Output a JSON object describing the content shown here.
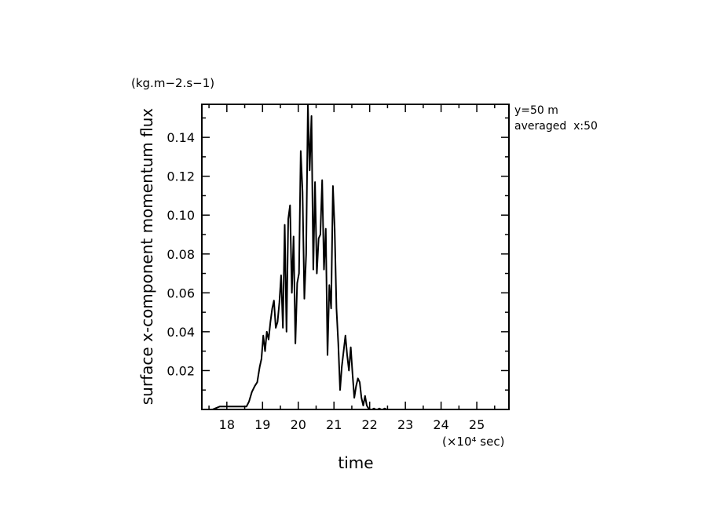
{
  "chart_data": {
    "type": "line",
    "title": "",
    "xlabel": "time",
    "ylabel": "surface x-component momentum flux",
    "x_unit": "(×10⁴ sec)",
    "y_unit": "(kg.m−2.s−1)",
    "annotations": [
      "y=50 m",
      "averaged  x:50"
    ],
    "xlim": [
      17.3,
      25.9
    ],
    "ylim": [
      0,
      0.157
    ],
    "x_ticks": [
      18,
      19,
      20,
      21,
      22,
      23,
      24,
      25
    ],
    "x_tick_labels": [
      "18",
      "19",
      "20",
      "21",
      "22",
      "23",
      "24",
      "25"
    ],
    "y_ticks": [
      0.02,
      0.04,
      0.06,
      0.08,
      0.1,
      0.12,
      0.14
    ],
    "y_tick_labels": [
      "0.02",
      "0.04",
      "0.06",
      "0.08",
      "0.10",
      "0.12",
      "0.14"
    ],
    "grid": false,
    "line_color": "#000000",
    "series": [
      {
        "x": [
          17.3,
          17.6,
          17.8,
          18.0,
          18.2,
          18.4,
          18.55,
          18.62,
          18.7,
          18.78,
          18.85,
          18.92,
          18.97,
          19.02,
          19.07,
          19.12,
          19.17,
          19.22,
          19.27,
          19.32,
          19.37,
          19.42,
          19.47,
          19.52,
          19.57,
          19.62,
          19.67,
          19.72,
          19.77,
          19.82,
          19.87,
          19.92,
          19.97,
          20.02,
          20.07,
          20.12,
          20.17,
          20.22,
          20.27,
          20.32,
          20.37,
          20.42,
          20.47,
          20.52,
          20.57,
          20.62,
          20.67,
          20.72,
          20.77,
          20.82,
          20.87,
          20.92,
          20.97,
          21.02,
          21.07,
          21.12,
          21.17,
          21.22,
          21.27,
          21.32,
          21.37,
          21.42,
          21.47,
          21.52,
          21.57,
          21.62,
          21.67,
          21.72,
          21.77,
          21.82,
          21.87,
          21.92,
          21.97,
          22.02,
          22.07,
          22.12,
          22.17,
          22.22,
          22.27,
          22.32,
          22.37,
          22.42,
          22.47,
          22.52,
          22.57,
          22.62,
          22.7,
          22.8,
          23.0,
          23.3,
          23.6,
          24.0,
          24.5,
          25.0,
          25.5,
          25.9
        ],
        "values": [
          0.0,
          0.0,
          0.0015,
          0.0015,
          0.0015,
          0.0015,
          0.0015,
          0.004,
          0.009,
          0.012,
          0.014,
          0.022,
          0.026,
          0.038,
          0.03,
          0.04,
          0.036,
          0.045,
          0.052,
          0.056,
          0.042,
          0.045,
          0.055,
          0.069,
          0.042,
          0.095,
          0.04,
          0.098,
          0.105,
          0.06,
          0.089,
          0.034,
          0.065,
          0.07,
          0.133,
          0.112,
          0.057,
          0.08,
          0.157,
          0.123,
          0.151,
          0.072,
          0.117,
          0.07,
          0.088,
          0.09,
          0.118,
          0.072,
          0.093,
          0.028,
          0.064,
          0.052,
          0.115,
          0.093,
          0.052,
          0.034,
          0.01,
          0.022,
          0.03,
          0.038,
          0.028,
          0.02,
          0.032,
          0.018,
          0.006,
          0.012,
          0.016,
          0.014,
          0.006,
          0.002,
          0.007,
          0.002,
          0.0005,
          0.0,
          0.0,
          0.0005,
          0.0,
          0.0,
          0.0005,
          0.0,
          0.0,
          0.0005,
          0.0,
          0.0,
          0.0,
          0.0,
          0.0,
          0.0,
          0.0,
          0.0,
          0.0,
          0.0,
          0.0,
          0.0,
          0.0,
          0.0
        ]
      }
    ]
  }
}
